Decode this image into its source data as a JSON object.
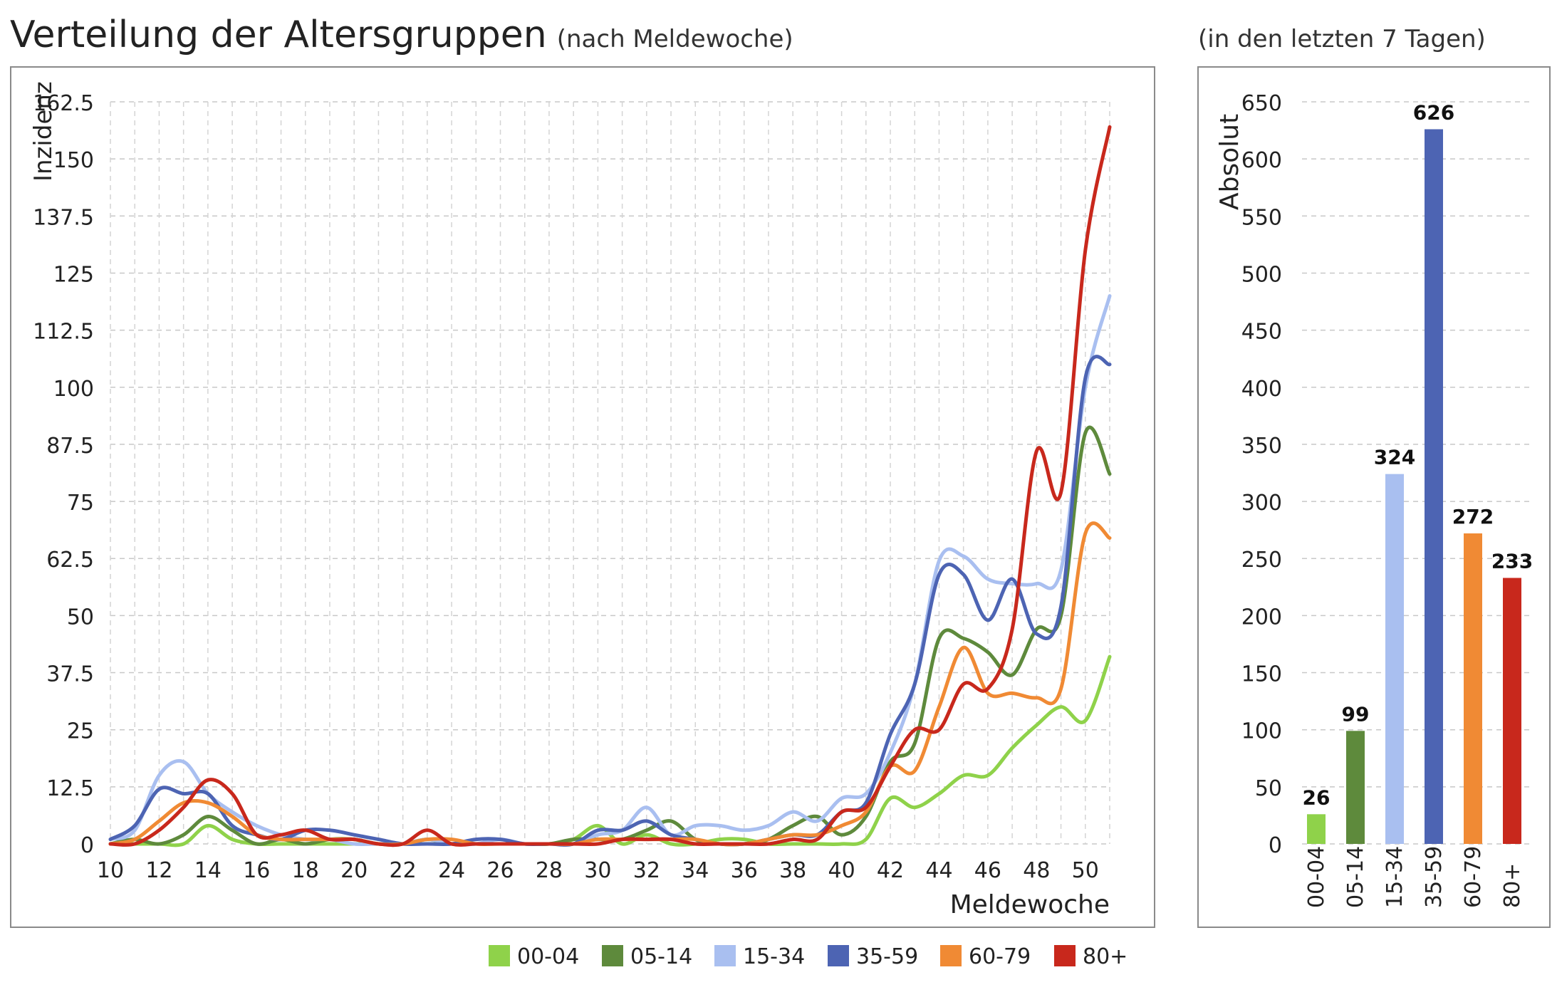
{
  "title": "Verteilung der Altersgruppen",
  "subtitle": "(nach Meldewoche)",
  "right_title": "(in den letzten 7 Tagen)",
  "colors": {
    "00-04": "#8fd24a",
    "05-14": "#5e8a3c",
    "15-34": "#a9bff0",
    "35-59": "#4d64b3",
    "60-79": "#f08a34",
    "80+": "#c8281c"
  },
  "chart_data": [
    {
      "type": "line",
      "ylabel": "Inzidenz",
      "xlabel": "Meldewoche",
      "xlim": [
        10,
        51
      ],
      "ylim": [
        0,
        162.5
      ],
      "yticks": [
        0,
        12.5,
        25,
        37.5,
        50,
        62.5,
        75,
        87.5,
        100,
        112.5,
        125,
        137.5,
        150,
        162.5
      ],
      "xticks": [
        10,
        12,
        14,
        16,
        18,
        20,
        22,
        24,
        26,
        28,
        30,
        32,
        34,
        36,
        38,
        40,
        42,
        44,
        46,
        48,
        50
      ],
      "grid": true,
      "legend": "bottom",
      "x": [
        10,
        11,
        12,
        13,
        14,
        15,
        16,
        17,
        18,
        19,
        20,
        21,
        22,
        23,
        24,
        25,
        26,
        27,
        28,
        29,
        30,
        31,
        32,
        33,
        34,
        35,
        36,
        37,
        38,
        39,
        40,
        41,
        42,
        43,
        44,
        45,
        46,
        47,
        48,
        49,
        50,
        51
      ],
      "series": [
        {
          "name": "00-04",
          "values": [
            0,
            0,
            0,
            0,
            4,
            1,
            0,
            0,
            0,
            0,
            0,
            0,
            0,
            0,
            0,
            0,
            0,
            0,
            0,
            1,
            4,
            0,
            2,
            0,
            0,
            1,
            1,
            0,
            0,
            0,
            0,
            1,
            10,
            8,
            11,
            15,
            15,
            21,
            26,
            30,
            27,
            41
          ]
        },
        {
          "name": "05-14",
          "values": [
            0,
            1,
            0,
            2,
            6,
            3,
            0,
            1,
            0,
            1,
            1,
            0,
            0,
            1,
            0,
            0,
            0,
            0,
            0,
            1,
            1,
            1,
            3,
            5,
            1,
            0,
            0,
            1,
            4,
            6,
            2,
            6,
            18,
            22,
            45,
            45,
            42,
            37,
            47,
            50,
            90,
            81
          ]
        },
        {
          "name": "15-34",
          "values": [
            1,
            3,
            15,
            18,
            11,
            7,
            4,
            2,
            1,
            1,
            0,
            0,
            0,
            1,
            0,
            0,
            1,
            0,
            0,
            0,
            2,
            3,
            8,
            2,
            4,
            4,
            3,
            4,
            7,
            5,
            10,
            11,
            20,
            35,
            62,
            63,
            58,
            57,
            57,
            60,
            100,
            120
          ]
        },
        {
          "name": "35-59",
          "values": [
            1,
            4,
            12,
            11,
            11,
            4,
            2,
            1,
            3,
            3,
            2,
            1,
            0,
            0,
            0,
            1,
            1,
            0,
            0,
            0,
            3,
            3,
            5,
            2,
            1,
            0,
            0,
            1,
            2,
            2,
            7,
            9,
            24,
            35,
            59,
            59,
            49,
            58,
            46,
            52,
            102,
            105
          ]
        },
        {
          "name": "60-79",
          "values": [
            0,
            1,
            5,
            9,
            9,
            6,
            2,
            1,
            1,
            1,
            1,
            0,
            0,
            1,
            1,
            0,
            0,
            0,
            0,
            0,
            1,
            1,
            1,
            1,
            1,
            0,
            0,
            1,
            2,
            2,
            4,
            7,
            17,
            16,
            30,
            43,
            33,
            33,
            32,
            34,
            68,
            67
          ]
        },
        {
          "name": "80+",
          "values": [
            0,
            0,
            3,
            8,
            14,
            11,
            2,
            2,
            3,
            1,
            1,
            0,
            0,
            3,
            0,
            0,
            0,
            0,
            0,
            0,
            0,
            1,
            1,
            1,
            0,
            0,
            0,
            0,
            1,
            1,
            7,
            8,
            17,
            25,
            25,
            35,
            34,
            47,
            86,
            77,
            130,
            157
          ]
        }
      ]
    },
    {
      "type": "bar",
      "ylabel": "Absolut",
      "ylim": [
        0,
        650
      ],
      "yticks": [
        0,
        50,
        100,
        150,
        200,
        250,
        300,
        350,
        400,
        450,
        500,
        550,
        600,
        650
      ],
      "categories": [
        "00-04",
        "05-14",
        "15-34",
        "35-59",
        "60-79",
        "80+"
      ],
      "values": [
        26,
        99,
        324,
        626,
        272,
        233
      ]
    }
  ]
}
